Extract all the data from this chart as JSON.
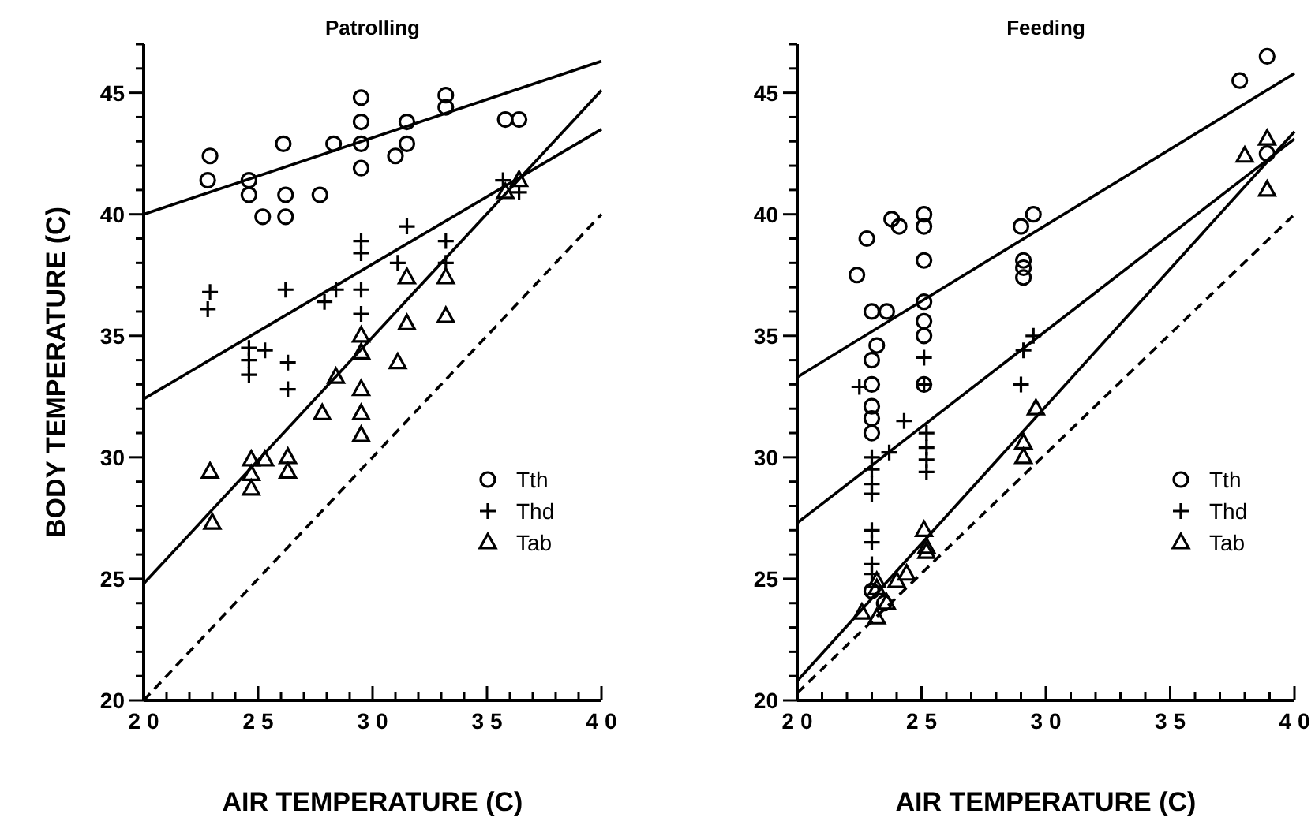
{
  "chart_data": [
    {
      "type": "scatter",
      "title": "Patrolling",
      "xlabel": "AIR TEMPERATURE (C)",
      "ylabel": "BODY TEMPERATURE (C)",
      "xlim": [
        20,
        40
      ],
      "ylim": [
        20,
        47
      ],
      "legend": "bottom right",
      "xticks": [
        20,
        {
          "value": 21,
          "label": null
        },
        {
          "value": 22,
          "label": null
        },
        {
          "value": 23,
          "label": null
        },
        {
          "value": 24,
          "label": null
        },
        25,
        {
          "value": 26,
          "label": null
        },
        {
          "value": 27,
          "label": null
        },
        {
          "value": 28,
          "label": null
        },
        {
          "value": 29,
          "label": null
        },
        30,
        {
          "value": 31,
          "label": null
        },
        {
          "value": 32,
          "label": null
        },
        {
          "value": 33,
          "label": null
        },
        {
          "value": 34,
          "label": null
        },
        35,
        {
          "value": 36,
          "label": null
        },
        {
          "value": 37,
          "label": null
        },
        {
          "value": 38,
          "label": null
        },
        {
          "value": 39,
          "label": null
        },
        40
      ],
      "yticks": [
        20,
        {
          "value": 21,
          "label": null
        },
        {
          "value": 22,
          "label": null
        },
        {
          "value": 23,
          "label": null
        },
        {
          "value": 24,
          "label": null
        },
        25,
        {
          "value": 26,
          "label": null
        },
        {
          "value": 27,
          "label": null
        },
        {
          "value": 28,
          "label": null
        },
        {
          "value": 29,
          "label": null
        },
        30,
        {
          "value": 31,
          "label": null
        },
        {
          "value": 32,
          "label": null
        },
        {
          "value": 33,
          "label": null
        },
        {
          "value": 34,
          "label": null
        },
        35,
        {
          "value": 36,
          "label": null
        },
        {
          "value": 37,
          "label": null
        },
        {
          "value": 38,
          "label": null
        },
        {
          "value": 39,
          "label": null
        },
        40,
        {
          "value": 41,
          "label": null
        },
        {
          "value": 42,
          "label": null
        },
        {
          "value": 43,
          "label": null
        },
        {
          "value": 44,
          "label": null
        },
        45,
        {
          "value": 46,
          "label": null
        },
        {
          "value": 47,
          "label": null
        }
      ],
      "series": [
        {
          "name": "Tth",
          "color": "#000000",
          "marker": "circle",
          "x": [
            22.9,
            22.8,
            24.6,
            24.6,
            25.2,
            26.2,
            26.2,
            26.1,
            27.7,
            28.3,
            29.5,
            29.5,
            29.5,
            29.5,
            31.0,
            31.5,
            31.5,
            33.2,
            33.2,
            35.8,
            36.4
          ],
          "values": [
            42.4,
            41.4,
            41.4,
            40.8,
            39.9,
            39.9,
            40.8,
            42.9,
            40.8,
            42.9,
            44.8,
            43.8,
            42.9,
            41.9,
            42.4,
            42.9,
            43.8,
            44.9,
            44.4,
            43.9,
            43.9
          ]
        },
        {
          "name": "Thd",
          "color": "#000000",
          "marker": "cross",
          "x": [
            22.9,
            22.8,
            26.2,
            27.9,
            28.4,
            29.5,
            29.5,
            29.5,
            29.5,
            31.5,
            31.1,
            33.2,
            33.2,
            35.7,
            36.4,
            24.6,
            25.3,
            24.6,
            24.6,
            26.3,
            26.3
          ],
          "values": [
            36.8,
            36.1,
            36.9,
            36.4,
            36.9,
            38.9,
            38.4,
            36.9,
            35.9,
            39.5,
            38.0,
            38.9,
            38.0,
            41.4,
            40.9,
            34.5,
            34.4,
            34.0,
            33.4,
            33.9,
            32.8
          ]
        },
        {
          "name": "Tab",
          "color": "#000000",
          "marker": "triangle",
          "x": [
            31.5,
            33.2,
            33.2,
            31.5,
            29.5,
            36.4,
            35.8,
            29.5,
            31.1,
            28.4,
            27.8,
            29.5,
            29.5,
            29.5,
            22.9,
            24.7,
            25.3,
            24.7,
            24.7,
            26.3,
            26.3,
            23.0
          ],
          "values": [
            37.4,
            37.4,
            35.8,
            35.5,
            35.0,
            41.4,
            40.9,
            34.3,
            33.9,
            33.3,
            31.8,
            32.8,
            31.8,
            30.9,
            29.4,
            29.9,
            29.9,
            29.3,
            28.7,
            30.0,
            29.4,
            27.3
          ]
        },
        {
          "type": "line",
          "color": "#000000",
          "marker": "none",
          "x": [
            20,
            40
          ],
          "values": [
            40,
            46.3
          ]
        },
        {
          "type": "line",
          "color": "#000000",
          "marker": "none",
          "x": [
            20,
            40
          ],
          "values": [
            32.4,
            43.5
          ]
        },
        {
          "type": "line",
          "color": "#000000",
          "marker": "none",
          "x": [
            20,
            40
          ],
          "values": [
            24.8,
            45.1
          ]
        },
        {
          "type": "line",
          "color": "#000000",
          "marker": "none",
          "line_style": "dashed",
          "x": [
            20,
            40
          ],
          "values": [
            20,
            40
          ]
        }
      ]
    },
    {
      "type": "scatter",
      "title": "Feeding",
      "xlabel": "AIR TEMPERATURE (C)",
      "xlim": [
        20,
        40
      ],
      "ylim": [
        20,
        47
      ],
      "legend": "bottom right",
      "xticks": [
        20,
        {
          "value": 21,
          "label": null
        },
        {
          "value": 22,
          "label": null
        },
        {
          "value": 23,
          "label": null
        },
        {
          "value": 24,
          "label": null
        },
        25,
        {
          "value": 26,
          "label": null
        },
        {
          "value": 27,
          "label": null
        },
        {
          "value": 28,
          "label": null
        },
        {
          "value": 29,
          "label": null
        },
        30,
        {
          "value": 31,
          "label": null
        },
        {
          "value": 32,
          "label": null
        },
        {
          "value": 33,
          "label": null
        },
        {
          "value": 34,
          "label": null
        },
        35,
        {
          "value": 36,
          "label": null
        },
        {
          "value": 37,
          "label": null
        },
        {
          "value": 38,
          "label": null
        },
        {
          "value": 39,
          "label": null
        },
        40
      ],
      "yticks": [
        20,
        {
          "value": 21,
          "label": null
        },
        {
          "value": 22,
          "label": null
        },
        {
          "value": 23,
          "label": null
        },
        {
          "value": 24,
          "label": null
        },
        25,
        {
          "value": 26,
          "label": null
        },
        {
          "value": 27,
          "label": null
        },
        {
          "value": 28,
          "label": null
        },
        {
          "value": 29,
          "label": null
        },
        30,
        {
          "value": 31,
          "label": null
        },
        {
          "value": 32,
          "label": null
        },
        {
          "value": 33,
          "label": null
        },
        {
          "value": 34,
          "label": null
        },
        35,
        {
          "value": 36,
          "label": null
        },
        {
          "value": 37,
          "label": null
        },
        {
          "value": 38,
          "label": null
        },
        {
          "value": 39,
          "label": null
        },
        40,
        {
          "value": 41,
          "label": null
        },
        {
          "value": 42,
          "label": null
        },
        {
          "value": 43,
          "label": null
        },
        {
          "value": 44,
          "label": null
        },
        45,
        {
          "value": 46,
          "label": null
        },
        {
          "value": 47,
          "label": null
        }
      ],
      "series": [
        {
          "name": "Tth",
          "color": "#000000",
          "marker": "circle",
          "x": [
            37.8,
            38.9,
            22.8,
            22.4,
            23.8,
            24.1,
            25.1,
            25.1,
            25.1,
            25.1,
            25.1,
            25.1,
            23.0,
            23.6,
            23.2,
            29.0,
            29.5,
            29.1,
            29.1,
            29.1,
            38.9,
            23.0,
            23.0,
            23.0,
            23.0,
            23.0,
            25.1,
            23.0,
            23.5
          ],
          "values": [
            45.5,
            46.5,
            39.0,
            37.5,
            39.8,
            39.5,
            40.0,
            39.5,
            38.1,
            36.4,
            35.6,
            35.0,
            36.0,
            36.0,
            34.6,
            39.5,
            40.0,
            38.1,
            37.8,
            37.4,
            42.5,
            34.0,
            33.0,
            32.1,
            31.6,
            31.0,
            33.0,
            24.5,
            24.0
          ]
        },
        {
          "name": "Thd",
          "color": "#000000",
          "marker": "cross",
          "x": [
            25.1,
            29.1,
            29.5,
            22.5,
            29.0,
            25.1,
            24.3,
            23.7,
            23.0,
            23.0,
            23.0,
            23.0,
            25.2,
            25.2,
            25.2,
            25.2,
            23.0,
            23.0,
            23.0,
            23.0
          ],
          "values": [
            34.1,
            34.4,
            35.0,
            32.9,
            33.0,
            33.0,
            31.5,
            30.2,
            30.0,
            29.5,
            28.9,
            28.5,
            31.0,
            30.4,
            29.9,
            29.4,
            27.0,
            26.5,
            25.6,
            25.2
          ]
        },
        {
          "name": "Tab",
          "color": "#000000",
          "marker": "triangle",
          "x": [
            38.0,
            38.9,
            38.9,
            29.6,
            29.1,
            29.1,
            25.1,
            25.2,
            25.2,
            24.4,
            24.0,
            23.2,
            23.2,
            23.6,
            22.6,
            23.2
          ],
          "values": [
            42.4,
            43.1,
            41.0,
            32.0,
            30.6,
            30.0,
            27.0,
            26.3,
            26.1,
            25.2,
            24.9,
            24.9,
            24.6,
            24.0,
            23.6,
            23.4
          ]
        },
        {
          "type": "line",
          "color": "#000000",
          "marker": "none",
          "x": [
            20,
            40
          ],
          "values": [
            33.3,
            45.8
          ]
        },
        {
          "type": "line",
          "color": "#000000",
          "marker": "none",
          "x": [
            20,
            40
          ],
          "values": [
            27.3,
            43.1
          ]
        },
        {
          "type": "line",
          "color": "#000000",
          "marker": "none",
          "x": [
            20,
            40
          ],
          "values": [
            20.8,
            43.4
          ]
        },
        {
          "type": "line",
          "color": "#000000",
          "marker": "none",
          "line_style": "dashed",
          "x": [
            20,
            40
          ],
          "values": [
            20.3,
            40
          ]
        }
      ]
    }
  ]
}
